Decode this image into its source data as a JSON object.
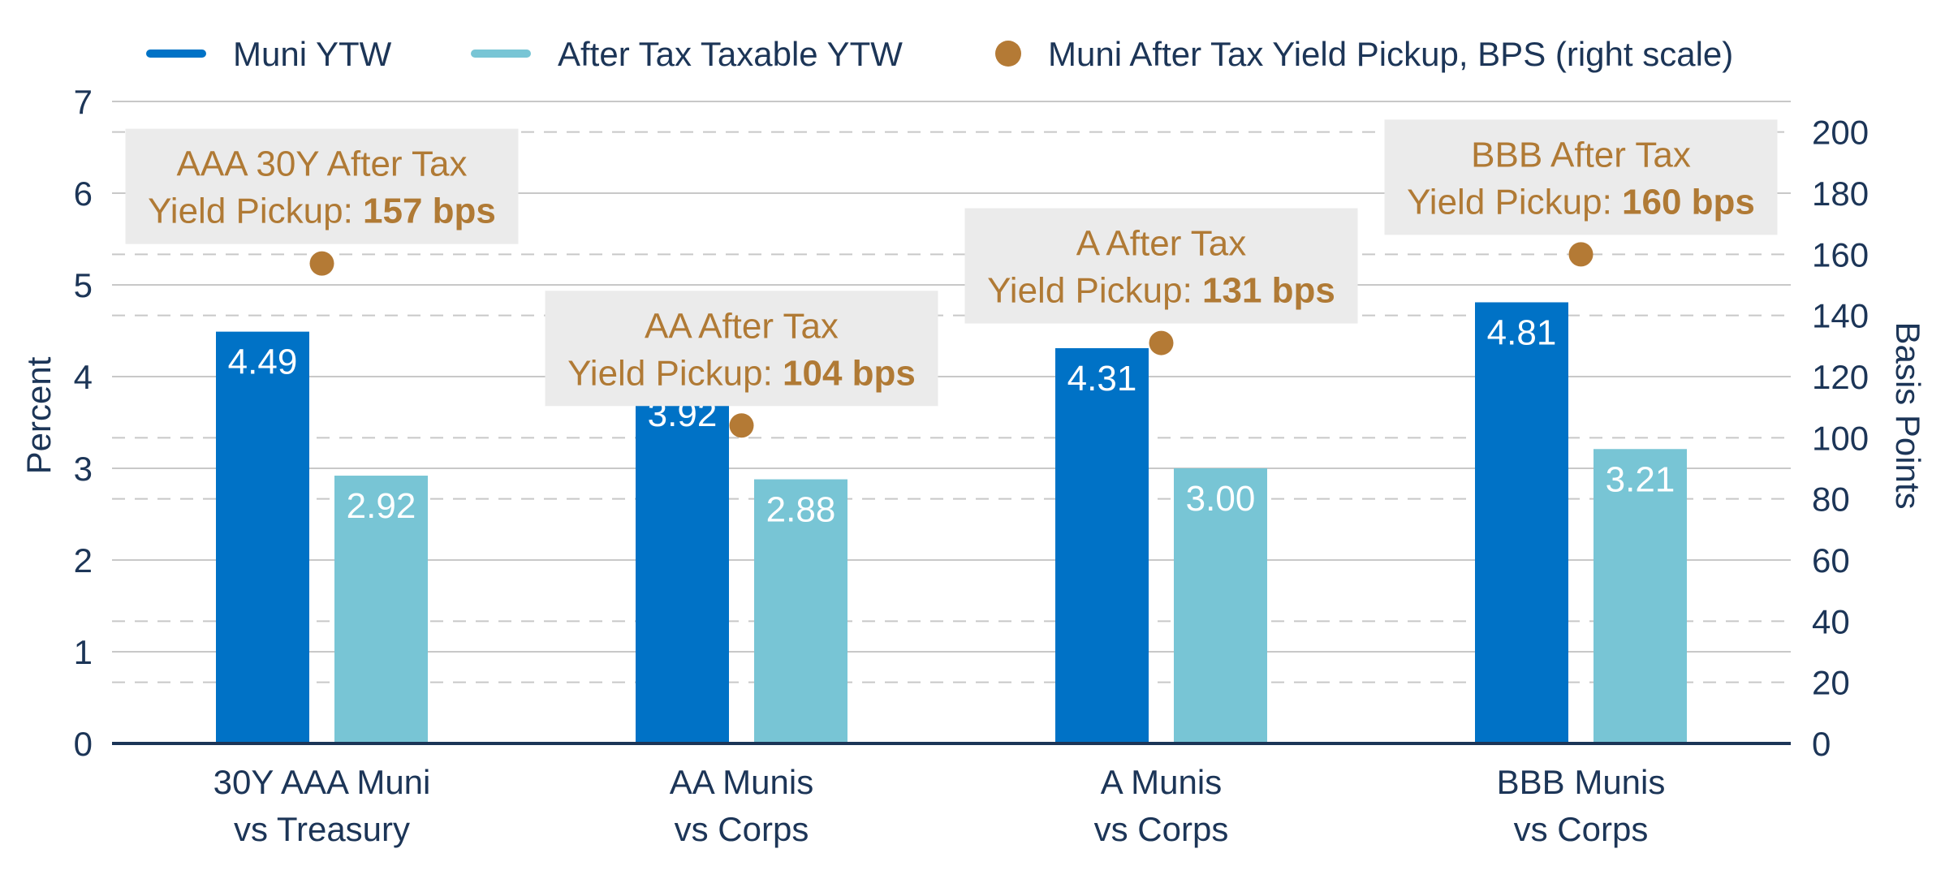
{
  "chart_data": {
    "type": "bar",
    "categories": [
      [
        "30Y AAA Muni",
        "vs Treasury"
      ],
      [
        "AA Munis",
        "vs Corps"
      ],
      [
        "A Munis",
        "vs Corps"
      ],
      [
        "BBB Munis",
        "vs Corps"
      ]
    ],
    "series": [
      {
        "name": "Muni YTW",
        "values": [
          4.49,
          3.92,
          4.31,
          4.81
        ],
        "labels": [
          "4.49",
          "3.92",
          "4.31",
          "4.81"
        ],
        "color": "#0072c6",
        "axis": "left",
        "kind": "bar"
      },
      {
        "name": "After Tax Taxable YTW",
        "values": [
          2.92,
          2.88,
          3.0,
          3.21
        ],
        "labels": [
          "2.92",
          "2.88",
          "3.00",
          "3.21"
        ],
        "color": "#78c5d5",
        "axis": "left",
        "kind": "bar"
      },
      {
        "name": "Muni After Tax Yield Pickup, BPS (right scale)",
        "values": [
          157,
          104,
          131,
          160
        ],
        "color": "#b47a35",
        "axis": "right",
        "kind": "scatter"
      }
    ],
    "annotations": [
      {
        "line1": "AAA 30Y After Tax",
        "line2_prefix": "Yield Pickup: ",
        "line2_bold": "157 bps"
      },
      {
        "line1": "AA After Tax",
        "line2_prefix": "Yield Pickup: ",
        "line2_bold": "104 bps"
      },
      {
        "line1": "A After Tax",
        "line2_prefix": "Yield Pickup: ",
        "line2_bold": "131 bps"
      },
      {
        "line1": "BBB After Tax",
        "line2_prefix": "Yield Pickup: ",
        "line2_bold": "160 bps"
      }
    ],
    "ylabel": "Percent",
    "y2label": "Basis Points",
    "ylim": [
      0,
      7
    ],
    "y2lim": [
      0,
      210
    ],
    "yticks": [
      0,
      1,
      2,
      3,
      4,
      5,
      6,
      7
    ],
    "y2ticks": [
      0,
      20,
      40,
      60,
      80,
      100,
      120,
      140,
      160,
      180,
      200
    ],
    "grid": true,
    "legend": "top"
  }
}
